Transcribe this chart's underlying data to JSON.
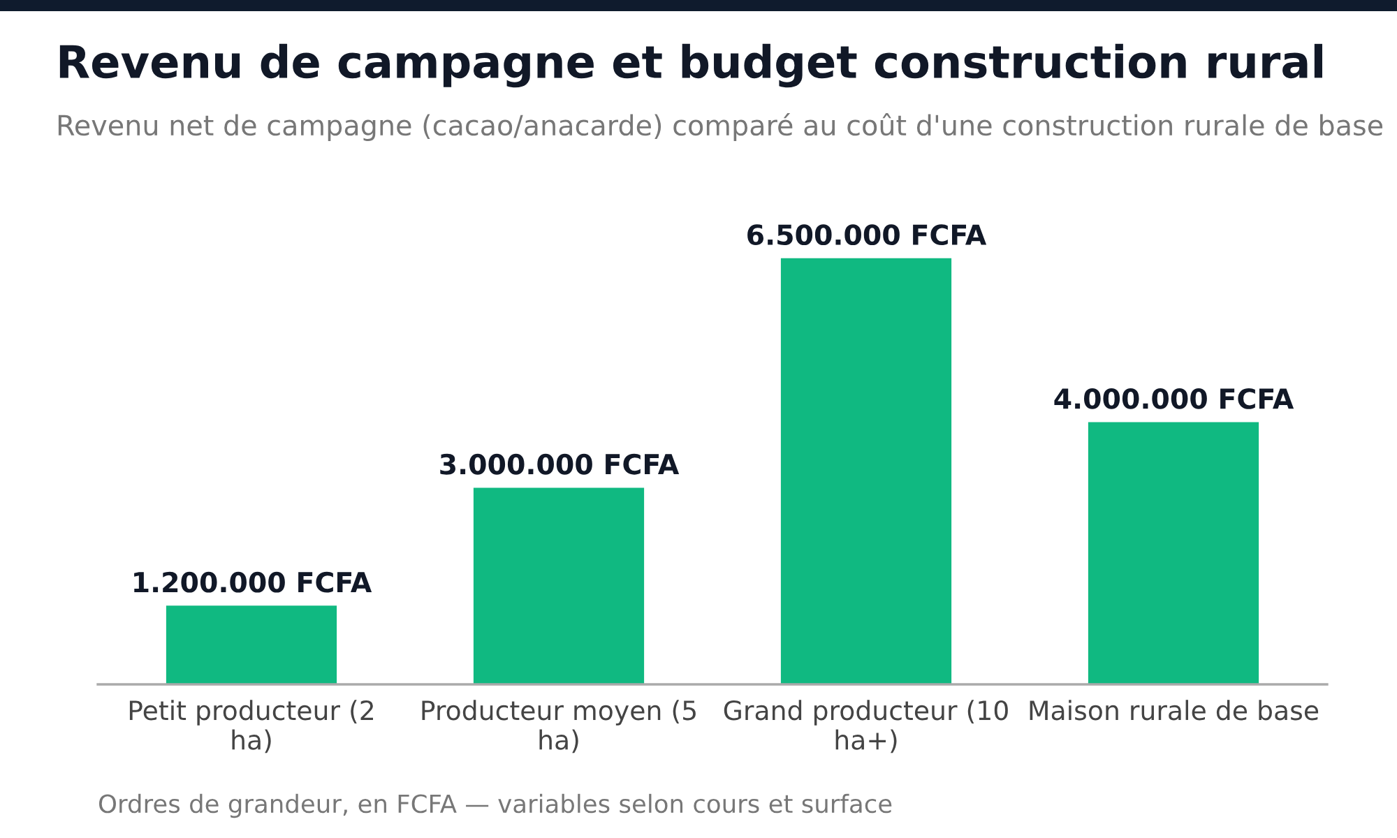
{
  "chart_data": {
    "type": "bar",
    "title": "Revenu de campagne et budget construction rural",
    "subtitle": "Revenu net de campagne (cacao/anacarde) comparé au coût d'une construction rurale de base",
    "categories": [
      "Petit producteur (2 ha)",
      "Producteur moyen (5 ha)",
      "Grand producteur (10 ha+)",
      "Maison rurale de base"
    ],
    "values": [
      1200000,
      3000000,
      6500000,
      4000000
    ],
    "color": "#10b981",
    "value_labels": [
      "1.200.000 FCFA",
      "3.000.000 FCFA",
      "6.500.000 FCFA",
      "4.000.000 FCFA"
    ],
    "tick_labels": "x",
    "annotations": [
      "Ordres de grandeur, en FCFA — variables selon cours et surface"
    ]
  }
}
